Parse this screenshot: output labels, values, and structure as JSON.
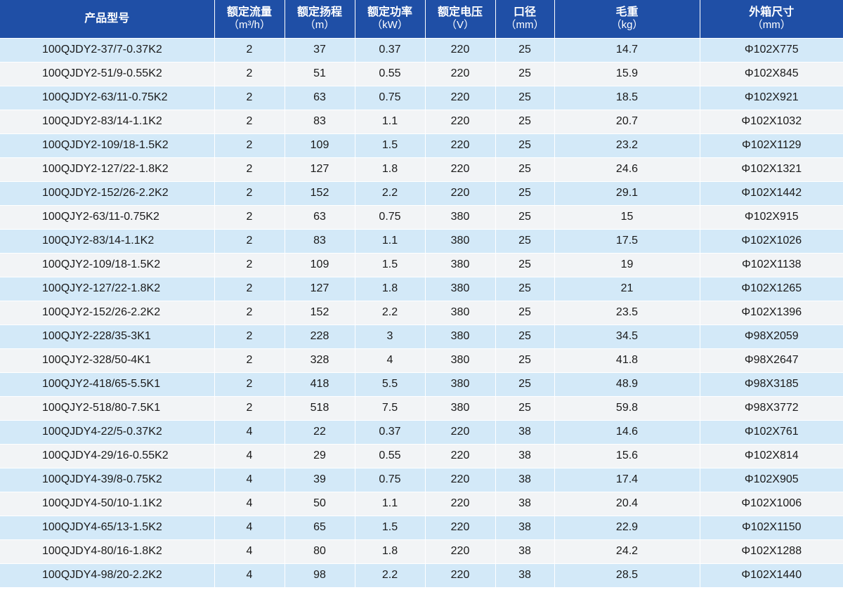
{
  "table": {
    "headers": [
      {
        "title": "产品型号",
        "unit": ""
      },
      {
        "title": "额定流量",
        "unit": "（m³/h）"
      },
      {
        "title": "额定扬程",
        "unit": "（m）"
      },
      {
        "title": "额定功率",
        "unit": "（kW）"
      },
      {
        "title": "额定电压",
        "unit": "（V）"
      },
      {
        "title": "口径",
        "unit": "（mm）"
      },
      {
        "title": "毛重",
        "unit": "（kg）"
      },
      {
        "title": "外箱尺寸",
        "unit": "（mm）"
      }
    ],
    "rows": [
      [
        "100QJDY2-37/7-0.37K2",
        "2",
        "37",
        "0.37",
        "220",
        "25",
        "14.7",
        "Φ102X775"
      ],
      [
        "100QJDY2-51/9-0.55K2",
        "2",
        "51",
        "0.55",
        "220",
        "25",
        "15.9",
        "Φ102X845"
      ],
      [
        "100QJDY2-63/11-0.75K2",
        "2",
        "63",
        "0.75",
        "220",
        "25",
        "18.5",
        "Φ102X921"
      ],
      [
        "100QJDY2-83/14-1.1K2",
        "2",
        "83",
        "1.1",
        "220",
        "25",
        "20.7",
        "Φ102X1032"
      ],
      [
        "100QJDY2-109/18-1.5K2",
        "2",
        "109",
        "1.5",
        "220",
        "25",
        "23.2",
        "Φ102X1129"
      ],
      [
        "100QJDY2-127/22-1.8K2",
        "2",
        "127",
        "1.8",
        "220",
        "25",
        "24.6",
        "Φ102X1321"
      ],
      [
        "100QJDY2-152/26-2.2K2",
        "2",
        "152",
        "2.2",
        "220",
        "25",
        "29.1",
        "Φ102X1442"
      ],
      [
        "100QJY2-63/11-0.75K2",
        "2",
        "63",
        "0.75",
        "380",
        "25",
        "15",
        "Φ102X915"
      ],
      [
        "100QJY2-83/14-1.1K2",
        "2",
        "83",
        "1.1",
        "380",
        "25",
        "17.5",
        "Φ102X1026"
      ],
      [
        "100QJY2-109/18-1.5K2",
        "2",
        "109",
        "1.5",
        "380",
        "25",
        "19",
        "Φ102X1138"
      ],
      [
        "100QJY2-127/22-1.8K2",
        "2",
        "127",
        "1.8",
        "380",
        "25",
        "21",
        "Φ102X1265"
      ],
      [
        "100QJY2-152/26-2.2K2",
        "2",
        "152",
        "2.2",
        "380",
        "25",
        "23.5",
        "Φ102X1396"
      ],
      [
        "100QJY2-228/35-3K1",
        "2",
        "228",
        "3",
        "380",
        "25",
        "34.5",
        "Φ98X2059"
      ],
      [
        "100QJY2-328/50-4K1",
        "2",
        "328",
        "4",
        "380",
        "25",
        "41.8",
        "Φ98X2647"
      ],
      [
        "100QJY2-418/65-5.5K1",
        "2",
        "418",
        "5.5",
        "380",
        "25",
        "48.9",
        "Φ98X3185"
      ],
      [
        "100QJY2-518/80-7.5K1",
        "2",
        "518",
        "7.5",
        "380",
        "25",
        "59.8",
        "Φ98X3772"
      ],
      [
        "100QJDY4-22/5-0.37K2",
        "4",
        "22",
        "0.37",
        "220",
        "38",
        "14.6",
        "Φ102X761"
      ],
      [
        "100QJDY4-29/16-0.55K2",
        "4",
        "29",
        "0.55",
        "220",
        "38",
        "15.6",
        "Φ102X814"
      ],
      [
        "100QJDY4-39/8-0.75K2",
        "4",
        "39",
        "0.75",
        "220",
        "38",
        "17.4",
        "Φ102X905"
      ],
      [
        "100QJDY4-50/10-1.1K2",
        "4",
        "50",
        "1.1",
        "220",
        "38",
        "20.4",
        "Φ102X1006"
      ],
      [
        "100QJDY4-65/13-1.5K2",
        "4",
        "65",
        "1.5",
        "220",
        "38",
        "22.9",
        "Φ102X1150"
      ],
      [
        "100QJDY4-80/16-1.8K2",
        "4",
        "80",
        "1.8",
        "220",
        "38",
        "24.2",
        "Φ102X1288"
      ],
      [
        "100QJDY4-98/20-2.2K2",
        "4",
        "98",
        "2.2",
        "220",
        "38",
        "28.5",
        "Φ102X1440"
      ]
    ]
  },
  "colors": {
    "header_background": "#1f4fa6",
    "header_text": "#ffffff",
    "row_odd": "#d3e9f8",
    "row_even": "#f2f4f6",
    "cell_text": "#1a1a1a"
  }
}
